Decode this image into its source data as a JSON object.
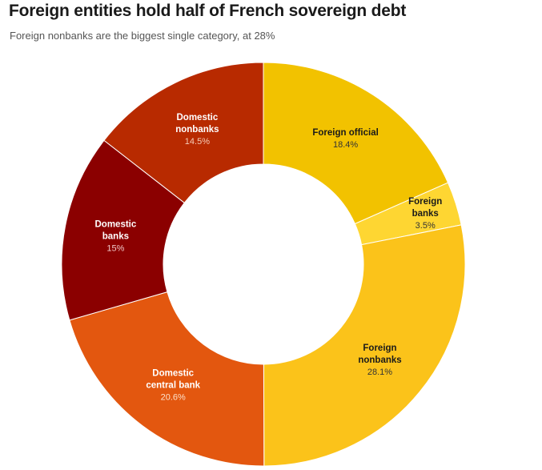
{
  "chart_data": {
    "type": "pie",
    "title": "Foreign entities hold half of French sovereign debt",
    "subtitle": "Foreign nonbanks are the biggest single category, at 28%",
    "donut": true,
    "slices": [
      {
        "label_lines": [
          "Foreign official"
        ],
        "value": 18.4,
        "value_label": "18.4%",
        "color": "#f2c200",
        "text_color": "#1a1a1a",
        "value_color": "#333333"
      },
      {
        "label_lines": [
          "Foreign",
          "banks"
        ],
        "value": 3.5,
        "value_label": "3.5%",
        "color": "#fed632",
        "text_color": "#1a1a1a",
        "value_color": "#333333"
      },
      {
        "label_lines": [
          "Foreign",
          "nonbanks"
        ],
        "value": 28.1,
        "value_label": "28.1%",
        "color": "#fbc31a",
        "text_color": "#1a1a1a",
        "value_color": "#333333"
      },
      {
        "label_lines": [
          "Domestic",
          "central bank"
        ],
        "value": 20.6,
        "value_label": "20.6%",
        "color": "#e3570f",
        "text_color": "#ffffff",
        "value_color": "#fde2cc"
      },
      {
        "label_lines": [
          "Domestic",
          "banks"
        ],
        "value": 15,
        "value_label": "15%",
        "color": "#8b0000",
        "text_color": "#ffffff",
        "value_color": "#f0c8c8"
      },
      {
        "label_lines": [
          "Domestic",
          "nonbanks"
        ],
        "value": 14.5,
        "value_label": "14.5%",
        "color": "#b82a00",
        "text_color": "#ffffff",
        "value_color": "#f6cdb8"
      }
    ]
  }
}
